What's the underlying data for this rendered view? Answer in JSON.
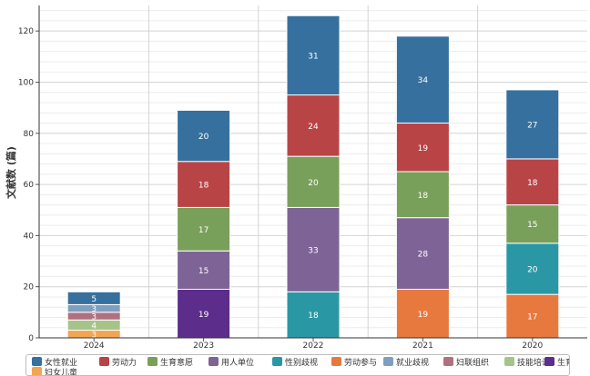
{
  "chart_data": {
    "type": "bar",
    "stacked": true,
    "categories": [
      "2024",
      "2023",
      "2022",
      "2021",
      "2020"
    ],
    "ylabel": "文献数 (篇)",
    "ylim": [
      0,
      130
    ],
    "yticks": [
      0,
      20,
      40,
      60,
      80,
      100,
      120
    ],
    "grid": true,
    "legend_position": "bottom",
    "series": [
      {
        "name": "妇女儿童",
        "color": "#f2a552",
        "values": [
          3,
          0,
          0,
          0,
          0
        ]
      },
      {
        "name": "生育政策",
        "color": "#5c2d8a",
        "values": [
          0,
          19,
          0,
          0,
          0
        ]
      },
      {
        "name": "劳动参与",
        "color": "#e8793e",
        "values": [
          0,
          0,
          0,
          19,
          17
        ]
      },
      {
        "name": "性别歧视",
        "color": "#2a98a4",
        "values": [
          0,
          0,
          18,
          0,
          20
        ]
      },
      {
        "name": "技能培训",
        "color": "#a6c48a",
        "values": [
          4,
          0,
          0,
          0,
          0
        ]
      },
      {
        "name": "妇联组织",
        "color": "#b07080",
        "values": [
          3,
          0,
          0,
          0,
          0
        ]
      },
      {
        "name": "就业歧视",
        "color": "#7f9fc0",
        "values": [
          3,
          0,
          0,
          0,
          0
        ]
      },
      {
        "name": "用人单位",
        "color": "#7e6496",
        "values": [
          0,
          15,
          33,
          28,
          0
        ]
      },
      {
        "name": "生育意愿",
        "color": "#79a05a",
        "values": [
          0,
          17,
          20,
          18,
          15
        ]
      },
      {
        "name": "劳动力",
        "color": "#b94446",
        "values": [
          0,
          18,
          24,
          19,
          18
        ]
      },
      {
        "name": "女性就业",
        "color": "#36709e",
        "values": [
          5,
          20,
          31,
          34,
          27
        ]
      }
    ]
  },
  "legend": [
    {
      "label": "女性就业",
      "color": "#36709e"
    },
    {
      "label": "劳动力",
      "color": "#b94446"
    },
    {
      "label": "生育意愿",
      "color": "#79a05a"
    },
    {
      "label": "用人单位",
      "color": "#7e6496"
    },
    {
      "label": "性别歧视",
      "color": "#2a98a4"
    },
    {
      "label": "劳动参与",
      "color": "#e8793e"
    },
    {
      "label": "就业歧视",
      "color": "#7f9fc0"
    },
    {
      "label": "妇联组织",
      "color": "#b07080"
    },
    {
      "label": "技能培训",
      "color": "#a6c48a"
    },
    {
      "label": "生育政策",
      "color": "#5c2d8a"
    },
    {
      "label": "妇女儿童",
      "color": "#f2a552"
    }
  ]
}
